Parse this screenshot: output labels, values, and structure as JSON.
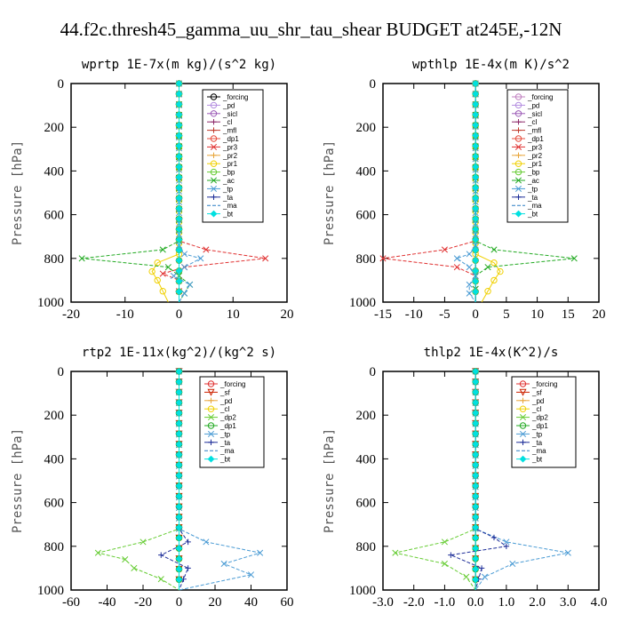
{
  "figure_title": "44.f2c.thresh45_gamma_uu_shr_tau_shear  BUDGET at245E,-12N",
  "chart_data": [
    {
      "type": "line",
      "title": "wprtp  1E-7x(m kg)/(s^2 kg)",
      "ylabel": "Pressure [hPa]",
      "xlim": [
        -20,
        20
      ],
      "ylim": [
        1000,
        0
      ],
      "xticks": [
        "-20",
        "-10",
        "0",
        "10",
        "20"
      ],
      "yticks": [
        "0",
        "200",
        "400",
        "600",
        "800",
        "1000"
      ],
      "grid": false,
      "legend_position": "top-right",
      "series": [
        {
          "name": "_forcing",
          "color": "#000000",
          "marker": "o",
          "pressure": [
            0,
            1000
          ],
          "values": [
            0,
            0
          ]
        },
        {
          "name": "_pd",
          "color": "#b48ee0",
          "marker": "o",
          "pressure": [
            0,
            1000
          ],
          "values": [
            0,
            0
          ]
        },
        {
          "name": "_sicl",
          "color": "#9b59b6",
          "marker": "o",
          "pressure": [
            0,
            1000
          ],
          "values": [
            0,
            0
          ]
        },
        {
          "name": "_cl",
          "color": "#8e2a6a",
          "marker": "+",
          "pressure": [
            0,
            1000
          ],
          "values": [
            0,
            0
          ]
        },
        {
          "name": "_mfl",
          "color": "#c0392b",
          "marker": "+",
          "pressure": [
            0,
            1000
          ],
          "values": [
            0,
            0
          ]
        },
        {
          "name": "_dp1",
          "color": "#e74c3c",
          "marker": "o",
          "pressure": [
            0,
            1000
          ],
          "values": [
            0,
            0
          ]
        },
        {
          "name": "_pr3",
          "color": "#e03030",
          "marker": "x",
          "pressure": [
            0,
            720,
            760,
            800,
            840,
            870,
            900,
            1000
          ],
          "values": [
            0,
            0,
            5,
            16,
            1,
            -3,
            0,
            0
          ]
        },
        {
          "name": "_pr2",
          "color": "#e8a53a",
          "marker": "+",
          "pressure": [
            0,
            1000
          ],
          "values": [
            0,
            0
          ]
        },
        {
          "name": "_pr1",
          "color": "#f0d000",
          "marker": "o",
          "pressure": [
            0,
            780,
            820,
            860,
            900,
            950,
            1000
          ],
          "values": [
            0,
            0,
            -4,
            -5,
            -4,
            -3,
            -2
          ]
        },
        {
          "name": "_bp",
          "color": "#66cc33",
          "marker": "o",
          "pressure": [
            0,
            1000
          ],
          "values": [
            0,
            0
          ]
        },
        {
          "name": "_ac",
          "color": "#22aa22",
          "marker": "x",
          "pressure": [
            0,
            720,
            760,
            800,
            840,
            880,
            920,
            1000
          ],
          "values": [
            0,
            0,
            -3,
            -18,
            -2,
            0,
            2,
            0
          ]
        },
        {
          "name": "_tp",
          "color": "#4a9bd4",
          "marker": "x",
          "pressure": [
            0,
            740,
            780,
            800,
            840,
            880,
            920,
            960,
            1000
          ],
          "values": [
            0,
            0,
            1,
            4,
            1,
            -1,
            2,
            1,
            0
          ]
        },
        {
          "name": "_ta",
          "color": "#1f2f99",
          "marker": "+",
          "pressure": [
            0,
            1000
          ],
          "values": [
            0,
            0
          ]
        },
        {
          "name": "_ma",
          "color": "#2a7fc4",
          "marker": "-",
          "pressure": [
            0,
            1000
          ],
          "values": [
            0,
            0
          ]
        },
        {
          "name": "_bt",
          "color": "#00e0e0",
          "marker": "D",
          "pressure": [
            0,
            1000
          ],
          "values": [
            0,
            0
          ]
        }
      ]
    },
    {
      "type": "line",
      "title": "wpthlp  1E-4x(m K)/s^2",
      "ylabel": "Pressure [hPa]",
      "xlim": [
        -15,
        20
      ],
      "ylim": [
        1000,
        0
      ],
      "xticks": [
        "-15",
        "-10",
        "-5",
        "0",
        "5",
        "10",
        "15",
        "20"
      ],
      "yticks": [
        "0",
        "200",
        "400",
        "600",
        "800",
        "1000"
      ],
      "grid": false,
      "legend_position": "top-right",
      "series": [
        {
          "name": "_forcing",
          "color": "#c080c0",
          "marker": "o",
          "pressure": [
            0,
            1000
          ],
          "values": [
            0,
            0
          ]
        },
        {
          "name": "_pd",
          "color": "#b48ee0",
          "marker": "o",
          "pressure": [
            0,
            1000
          ],
          "values": [
            0,
            0
          ]
        },
        {
          "name": "_sicl",
          "color": "#9b59b6",
          "marker": "o",
          "pressure": [
            0,
            1000
          ],
          "values": [
            0,
            0
          ]
        },
        {
          "name": "_cl",
          "color": "#8e2a6a",
          "marker": "+",
          "pressure": [
            0,
            1000
          ],
          "values": [
            0,
            0
          ]
        },
        {
          "name": "_mfl",
          "color": "#c0392b",
          "marker": "+",
          "pressure": [
            0,
            1000
          ],
          "values": [
            0,
            0
          ]
        },
        {
          "name": "_dp1",
          "color": "#e74c3c",
          "marker": "o",
          "pressure": [
            0,
            1000
          ],
          "values": [
            0,
            0
          ]
        },
        {
          "name": "_pr3",
          "color": "#e03030",
          "marker": "x",
          "pressure": [
            0,
            720,
            760,
            800,
            840,
            880,
            1000
          ],
          "values": [
            0,
            0,
            -5,
            -15,
            -3,
            0,
            0
          ]
        },
        {
          "name": "_pr2",
          "color": "#e8a53a",
          "marker": "+",
          "pressure": [
            0,
            1000
          ],
          "values": [
            0,
            0
          ]
        },
        {
          "name": "_pr1",
          "color": "#f0d000",
          "marker": "o",
          "pressure": [
            0,
            780,
            820,
            860,
            900,
            950,
            1000
          ],
          "values": [
            0,
            0,
            3,
            4,
            3,
            2,
            1
          ]
        },
        {
          "name": "_bp",
          "color": "#66cc33",
          "marker": "o",
          "pressure": [
            0,
            1000
          ],
          "values": [
            0,
            0
          ]
        },
        {
          "name": "_ac",
          "color": "#22aa22",
          "marker": "x",
          "pressure": [
            0,
            720,
            760,
            800,
            840,
            880,
            1000
          ],
          "values": [
            0,
            0,
            3,
            16,
            2,
            0,
            0
          ]
        },
        {
          "name": "_tp",
          "color": "#4a9bd4",
          "marker": "x",
          "pressure": [
            0,
            740,
            780,
            800,
            840,
            880,
            920,
            960,
            1000
          ],
          "values": [
            0,
            0,
            -1,
            -3,
            -1,
            0,
            -1,
            -1,
            0
          ]
        },
        {
          "name": "_ta",
          "color": "#1f2f99",
          "marker": "+",
          "pressure": [
            0,
            1000
          ],
          "values": [
            0,
            0
          ]
        },
        {
          "name": "_ma",
          "color": "#2a7fc4",
          "marker": "-",
          "pressure": [
            0,
            1000
          ],
          "values": [
            0,
            0
          ]
        },
        {
          "name": "_bt",
          "color": "#00e0e0",
          "marker": "D",
          "pressure": [
            0,
            1000
          ],
          "values": [
            0,
            0
          ]
        }
      ]
    },
    {
      "type": "line",
      "title": "rtp2  1E-11x(kg^2)/(kg^2 s)",
      "ylabel": "Pressure [hPa]",
      "xlim": [
        -60,
        60
      ],
      "ylim": [
        1000,
        0
      ],
      "xticks": [
        "-60",
        "-40",
        "-20",
        "0",
        "20",
        "40",
        "60"
      ],
      "yticks": [
        "0",
        "200",
        "400",
        "600",
        "800",
        "1000"
      ],
      "grid": false,
      "legend_position": "top-right",
      "series": [
        {
          "name": "_forcing",
          "color": "#e03030",
          "marker": "o",
          "pressure": [
            0,
            1000
          ],
          "values": [
            0,
            0
          ]
        },
        {
          "name": "_sf",
          "color": "#cc2200",
          "marker": "v",
          "pressure": [
            0,
            1000
          ],
          "values": [
            0,
            0
          ]
        },
        {
          "name": "_pd",
          "color": "#e8a53a",
          "marker": "+",
          "pressure": [
            0,
            1000
          ],
          "values": [
            0,
            0
          ]
        },
        {
          "name": "_cl",
          "color": "#f0d000",
          "marker": "o",
          "pressure": [
            0,
            1000
          ],
          "values": [
            0,
            0
          ]
        },
        {
          "name": "_dp2",
          "color": "#66cc33",
          "marker": "x",
          "pressure": [
            0,
            720,
            780,
            830,
            860,
            900,
            950,
            1000
          ],
          "values": [
            0,
            0,
            -20,
            -45,
            -30,
            -25,
            -10,
            0
          ]
        },
        {
          "name": "_dp1",
          "color": "#22aa22",
          "marker": "o",
          "pressure": [
            0,
            1000
          ],
          "values": [
            0,
            0
          ]
        },
        {
          "name": "_tp",
          "color": "#4a9bd4",
          "marker": "x",
          "pressure": [
            0,
            720,
            780,
            830,
            880,
            930,
            1000
          ],
          "values": [
            0,
            0,
            15,
            45,
            25,
            40,
            0
          ]
        },
        {
          "name": "_ta",
          "color": "#1f2f99",
          "marker": "+",
          "pressure": [
            0,
            720,
            780,
            840,
            900,
            1000
          ],
          "values": [
            0,
            0,
            5,
            -10,
            5,
            0
          ]
        },
        {
          "name": "_ma",
          "color": "#2a7fc4",
          "marker": "-",
          "pressure": [
            0,
            1000
          ],
          "values": [
            0,
            0
          ]
        },
        {
          "name": "_bt",
          "color": "#00e0e0",
          "marker": "D",
          "pressure": [
            0,
            1000
          ],
          "values": [
            0,
            0
          ]
        }
      ]
    },
    {
      "type": "line",
      "title": "thlp2  1E-4x(K^2)/s",
      "ylabel": "Pressure [hPa]",
      "xlim": [
        -3.0,
        4.0
      ],
      "ylim": [
        1000,
        0
      ],
      "xticks": [
        "-3.0",
        "-2.0",
        "-1.0",
        "0.0",
        "1.0",
        "2.0",
        "3.0",
        "4.0"
      ],
      "yticks": [
        "0",
        "200",
        "400",
        "600",
        "800",
        "1000"
      ],
      "grid": false,
      "legend_position": "top-right",
      "series": [
        {
          "name": "_forcing",
          "color": "#e03030",
          "marker": "o",
          "pressure": [
            0,
            1000
          ],
          "values": [
            0,
            0
          ]
        },
        {
          "name": "_sf",
          "color": "#cc2200",
          "marker": "v",
          "pressure": [
            0,
            1000
          ],
          "values": [
            0,
            0
          ]
        },
        {
          "name": "_pd",
          "color": "#e8a53a",
          "marker": "+",
          "pressure": [
            0,
            1000
          ],
          "values": [
            0,
            0
          ]
        },
        {
          "name": "_cl",
          "color": "#f0d000",
          "marker": "o",
          "pressure": [
            0,
            1000
          ],
          "values": [
            0,
            0
          ]
        },
        {
          "name": "_dp2",
          "color": "#66cc33",
          "marker": "x",
          "pressure": [
            0,
            720,
            780,
            830,
            880,
            940,
            1000
          ],
          "values": [
            0,
            0,
            -1.0,
            -2.6,
            -1.0,
            -0.3,
            0
          ]
        },
        {
          "name": "_dp1",
          "color": "#22aa22",
          "marker": "o",
          "pressure": [
            0,
            1000
          ],
          "values": [
            0,
            0
          ]
        },
        {
          "name": "_tp",
          "color": "#4a9bd4",
          "marker": "x",
          "pressure": [
            0,
            720,
            780,
            830,
            880,
            940,
            1000
          ],
          "values": [
            0,
            0,
            1.0,
            3.0,
            1.2,
            0.3,
            0
          ]
        },
        {
          "name": "_ta",
          "color": "#1f2f99",
          "marker": "+",
          "pressure": [
            0,
            720,
            760,
            800,
            840,
            900,
            1000
          ],
          "values": [
            0,
            0,
            0.6,
            1.0,
            -0.8,
            0.2,
            0
          ]
        },
        {
          "name": "_ma",
          "color": "#2a7fc4",
          "marker": "-",
          "pressure": [
            0,
            1000
          ],
          "values": [
            0,
            0
          ]
        },
        {
          "name": "_bt",
          "color": "#00e0e0",
          "marker": "D",
          "pressure": [
            0,
            1000
          ],
          "values": [
            0,
            0
          ]
        }
      ]
    }
  ]
}
